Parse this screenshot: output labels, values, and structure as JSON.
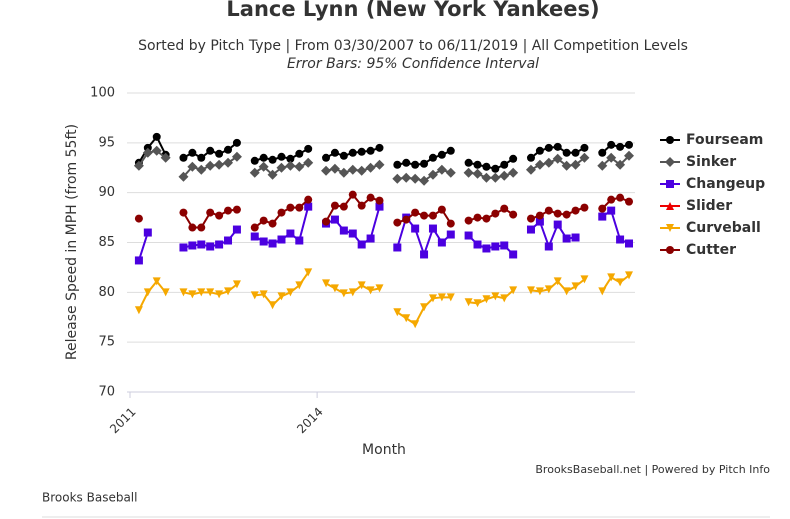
{
  "chart_data": {
    "type": "line",
    "title": "Lance Lynn (New York Yankees)",
    "subtitle": "Sorted by Pitch Type | From 03/30/2007 to 06/11/2019 | All Competition Levels",
    "note": "Error Bars: 95% Confidence Interval",
    "xlabel": "Month",
    "ylabel": "Release Speed in MPH (from 55ft)",
    "credits": "BrooksBaseball.net | Powered by Pitch Info",
    "footer": "Brooks Baseball",
    "ylim": [
      70,
      100
    ],
    "yticks": [
      70,
      75,
      80,
      85,
      90,
      95,
      100
    ],
    "grid": true,
    "legend": "right",
    "categories": [
      "2011",
      null,
      null,
      null,
      null,
      null,
      null,
      null,
      null,
      null,
      null,
      null,
      null,
      null,
      null,
      null,
      null,
      null,
      null,
      null,
      null,
      "2014",
      null,
      null,
      null,
      null,
      null,
      null,
      null,
      null,
      null,
      null,
      null,
      null,
      null,
      null,
      null,
      null,
      null,
      null,
      null,
      null,
      null,
      null,
      null,
      null,
      null,
      null,
      null,
      null,
      null,
      null,
      null,
      null,
      null,
      null,
      null
    ],
    "series": [
      {
        "name": "Fourseam",
        "color": "#000000",
        "marker": "circle",
        "values": [
          null,
          93,
          94.5,
          95.6,
          93.8,
          null,
          93.5,
          94,
          93.5,
          94.2,
          93.9,
          94.3,
          95,
          null,
          93.2,
          93.5,
          93.3,
          93.6,
          93.4,
          93.9,
          94.4,
          null,
          93.5,
          94,
          93.7,
          94,
          94.1,
          94.2,
          94.5,
          null,
          92.8,
          93,
          92.8,
          92.9,
          93.5,
          93.8,
          94.2,
          null,
          93,
          92.8,
          92.6,
          92.4,
          92.8,
          93.4,
          null,
          93.5,
          94.2,
          94.5,
          94.6,
          94,
          94,
          94.5,
          null,
          94,
          94.8,
          94.6,
          94.8
        ]
      },
      {
        "name": "Sinker",
        "color": "#555555",
        "marker": "diamond",
        "values": [
          null,
          92.7,
          94,
          94.2,
          93.5,
          null,
          91.6,
          92.6,
          92.3,
          92.7,
          92.8,
          93,
          93.6,
          null,
          92,
          92.6,
          91.8,
          92.5,
          92.7,
          92.6,
          93,
          null,
          92.2,
          92.4,
          92,
          92.3,
          92.2,
          92.5,
          92.8,
          null,
          91.4,
          91.5,
          91.4,
          91.2,
          91.8,
          92.3,
          92,
          null,
          92,
          91.9,
          91.5,
          91.5,
          91.7,
          92,
          null,
          92.3,
          92.8,
          93,
          93.4,
          92.7,
          92.8,
          93.5,
          null,
          92.7,
          93.5,
          92.8,
          93.7
        ]
      },
      {
        "name": "Changeup",
        "color": "#4b00e0",
        "marker": "square",
        "values": [
          null,
          83.2,
          86,
          null,
          null,
          null,
          84.5,
          84.7,
          84.8,
          84.6,
          84.8,
          85.2,
          86.3,
          null,
          85.6,
          85.1,
          84.9,
          85.3,
          85.9,
          85.2,
          88.6,
          null,
          86.9,
          87.3,
          86.2,
          85.9,
          84.8,
          85.4,
          88.6,
          null,
          84.5,
          87.5,
          86.4,
          83.8,
          86.4,
          85,
          85.8,
          null,
          85.7,
          84.8,
          84.4,
          84.6,
          84.7,
          83.8,
          null,
          86.3,
          87.1,
          84.6,
          86.8,
          85.4,
          85.5,
          null,
          null,
          87.6,
          88.2,
          85.3,
          84.9
        ]
      },
      {
        "name": "Slider",
        "color": "#ee0000",
        "marker": "triangle",
        "values": [
          null,
          null,
          null,
          null,
          null,
          null,
          null,
          null,
          null,
          null,
          null,
          null,
          null,
          null,
          null,
          null,
          null,
          null,
          null,
          null,
          null,
          null,
          null,
          null,
          null,
          null,
          null,
          null,
          null,
          null,
          null,
          null,
          null,
          null,
          null,
          null,
          null,
          null,
          null,
          null,
          null,
          null,
          null,
          null,
          null,
          null,
          null,
          null,
          null,
          null,
          null,
          null,
          null,
          null,
          null,
          null,
          null
        ]
      },
      {
        "name": "Curveball",
        "color": "#f5a800",
        "marker": "triangle-down",
        "values": [
          null,
          78.2,
          80,
          81.1,
          80,
          null,
          80,
          79.8,
          80,
          80,
          79.8,
          80.1,
          80.8,
          null,
          79.7,
          79.8,
          78.7,
          79.6,
          80,
          80.7,
          82,
          null,
          80.9,
          80.4,
          79.9,
          80,
          80.7,
          80.2,
          80.4,
          null,
          78,
          77.4,
          76.8,
          78.5,
          79.4,
          79.5,
          79.5,
          null,
          79,
          78.9,
          79.3,
          79.6,
          79.4,
          80.2,
          null,
          80.2,
          80.1,
          80.3,
          81.1,
          80.1,
          80.6,
          81.3,
          null,
          80.1,
          81.5,
          81,
          81.7
        ]
      },
      {
        "name": "Cutter",
        "color": "#8b0000",
        "marker": "circle",
        "values": [
          null,
          87.4,
          null,
          null,
          null,
          null,
          88,
          86.5,
          86.5,
          88,
          87.7,
          88.2,
          88.3,
          null,
          86.5,
          87.2,
          86.9,
          88,
          88.5,
          88.5,
          89.3,
          null,
          87.1,
          88.7,
          88.6,
          89.8,
          88.7,
          89.5,
          89.2,
          null,
          87,
          87.3,
          88,
          87.7,
          87.7,
          88.3,
          86.9,
          null,
          87.2,
          87.5,
          87.4,
          87.9,
          88.4,
          87.8,
          null,
          87.4,
          87.7,
          88.2,
          87.9,
          87.8,
          88.2,
          88.5,
          null,
          88.4,
          89.3,
          89.5,
          89.1
        ]
      }
    ]
  }
}
